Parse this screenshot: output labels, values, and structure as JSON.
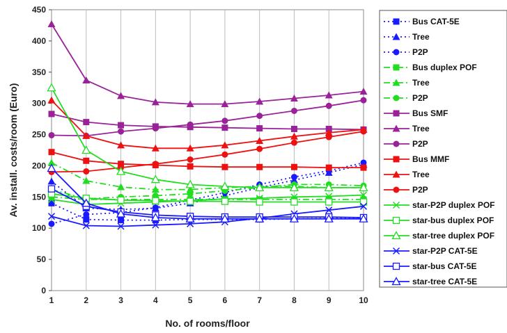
{
  "chart_data": {
    "type": "line",
    "xlabel": "No. of rooms/floor",
    "ylabel": "Av. install. costs/room (Euro)",
    "x": [
      1,
      2,
      3,
      4,
      5,
      6,
      7,
      8,
      9,
      10
    ],
    "xlim": [
      1,
      10
    ],
    "ylim": [
      0,
      450
    ],
    "yticks": [
      0,
      50,
      100,
      150,
      200,
      250,
      300,
      350,
      400,
      450
    ],
    "grid": "vertical",
    "legend_position": "right",
    "series": [
      {
        "name": "Bus CAT-5E",
        "color": "#1a1aff",
        "dash": "dotted",
        "marker": "square",
        "values": [
          140,
          114,
          113,
          113,
          114,
          114,
          114,
          115,
          116,
          116
        ]
      },
      {
        "name": "Tree",
        "color": "#1a1aff",
        "dash": "dotted",
        "marker": "triangle",
        "values": [
          175,
          132,
          130,
          132,
          140,
          152,
          165,
          177,
          189,
          202
        ]
      },
      {
        "name": "P2P",
        "color": "#1a1aff",
        "dash": "dotted",
        "marker": "circle",
        "values": [
          107,
          122,
          125,
          133,
          145,
          157,
          170,
          182,
          192,
          205
        ]
      },
      {
        "name": "Bus duplex POF",
        "color": "#22dd22",
        "dash": "dashdot",
        "marker": "square",
        "values": [
          150,
          146,
          146,
          146,
          146,
          146,
          146,
          146,
          146,
          146
        ]
      },
      {
        "name": "Tree",
        "color": "#22dd22",
        "dash": "dashdot",
        "marker": "triangle",
        "values": [
          205,
          176,
          166,
          162,
          162,
          165,
          167,
          167,
          165,
          165
        ]
      },
      {
        "name": "P2P",
        "color": "#22dd22",
        "dash": "dashdot",
        "marker": "circle",
        "values": [
          162,
          147,
          150,
          152,
          155,
          160,
          165,
          170,
          170,
          168
        ]
      },
      {
        "name": "Bus SMF",
        "color": "#992299",
        "dash": "solid",
        "marker": "square",
        "values": [
          283,
          270,
          265,
          263,
          262,
          261,
          260,
          259,
          259,
          258
        ]
      },
      {
        "name": "Tree",
        "color": "#992299",
        "dash": "solid",
        "marker": "triangle",
        "values": [
          427,
          337,
          312,
          302,
          299,
          299,
          303,
          308,
          313,
          319
        ]
      },
      {
        "name": "P2P",
        "color": "#992299",
        "dash": "solid",
        "marker": "circle",
        "values": [
          249,
          248,
          255,
          260,
          266,
          272,
          280,
          288,
          296,
          305
        ]
      },
      {
        "name": "Bus MMF",
        "color": "#ee1111",
        "dash": "solid",
        "marker": "square",
        "values": [
          222,
          208,
          203,
          201,
          199,
          198,
          198,
          198,
          197,
          197
        ]
      },
      {
        "name": "Tree",
        "color": "#ee1111",
        "dash": "solid",
        "marker": "triangle",
        "values": [
          305,
          248,
          233,
          228,
          228,
          233,
          240,
          247,
          253,
          258
        ]
      },
      {
        "name": "P2P",
        "color": "#ee1111",
        "dash": "solid",
        "marker": "circle",
        "values": [
          190,
          191,
          197,
          203,
          210,
          218,
          227,
          237,
          246,
          255
        ]
      },
      {
        "name": "star-P2P duplex POF",
        "color": "#22dd22",
        "dash": "solid",
        "marker": "x",
        "values": [
          146,
          138,
          140,
          142,
          144,
          147,
          148,
          150,
          151,
          153
        ]
      },
      {
        "name": "star-bus duplex POF",
        "color": "#22dd22",
        "dash": "solid",
        "marker": "open-square",
        "values": [
          155,
          148,
          145,
          144,
          143,
          143,
          142,
          142,
          142,
          142
        ]
      },
      {
        "name": "star-tree duplex POF",
        "color": "#22dd22",
        "dash": "solid",
        "marker": "open-triangle",
        "values": [
          325,
          225,
          191,
          178,
          170,
          167,
          165,
          165,
          165,
          165
        ]
      },
      {
        "name": "star-P2P CAT-5E",
        "color": "#1a1aff",
        "dash": "solid",
        "marker": "x",
        "values": [
          119,
          104,
          103,
          105,
          107,
          110,
          116,
          123,
          129,
          135
        ]
      },
      {
        "name": "star-bus CAT-5E",
        "color": "#1a1aff",
        "dash": "solid",
        "marker": "open-square",
        "values": [
          163,
          135,
          126,
          121,
          119,
          118,
          118,
          118,
          118,
          117
        ]
      },
      {
        "name": "star-tree CAT-5E",
        "color": "#1a1aff",
        "dash": "solid",
        "marker": "open-triangle",
        "values": [
          196,
          140,
          123,
          117,
          115,
          115,
          115,
          115,
          115,
          115
        ]
      }
    ]
  }
}
